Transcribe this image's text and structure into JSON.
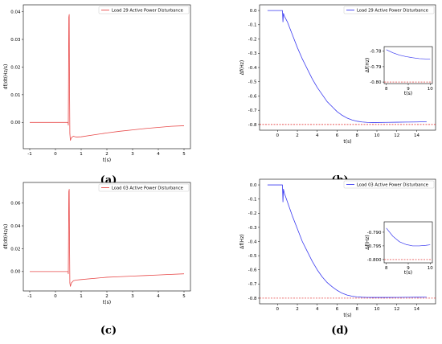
{
  "chart_data": [
    {
      "id": "a",
      "panel_label": "(a)",
      "type": "line",
      "legend": "Load 29 Active Power Disturbance",
      "legend_position": "top-right",
      "xlabel": "t(s)",
      "ylabel": "df/dt(Hz/s)",
      "xlim": [
        -1.25,
        5.25
      ],
      "ylim": [
        -0.0095,
        0.0425
      ],
      "xticks": [
        -1,
        0,
        1,
        2,
        3,
        4,
        5
      ],
      "yticks": [
        0.0,
        0.01,
        0.02,
        0.03,
        0.04
      ],
      "ytick_labels": [
        "0.00",
        "0.01",
        "0.02",
        "0.03",
        "0.04"
      ],
      "series": [
        {
          "name": "Load 29 Active Power Disturbance",
          "color": "#e84a4a",
          "x": [
            -1.0,
            0.0,
            0.49,
            0.5,
            0.52,
            0.535,
            0.545,
            0.56,
            0.58,
            0.62,
            0.7,
            0.8,
            1.0,
            1.5,
            2.0,
            2.5,
            3.0,
            3.5,
            4.0,
            4.5,
            5.0
          ],
          "y": [
            0.0,
            0.0,
            0.0,
            -0.001,
            0.038,
            0.039,
            0.015,
            -0.004,
            -0.0065,
            -0.0055,
            -0.005,
            -0.0053,
            -0.0052,
            -0.0045,
            -0.0038,
            -0.0032,
            -0.0027,
            -0.0022,
            -0.0018,
            -0.0014,
            -0.0012
          ]
        }
      ]
    },
    {
      "id": "b",
      "panel_label": "(b)",
      "type": "line",
      "legend": "Load 29 Active Power Disturbance",
      "legend_position": "top-right",
      "xlabel": "t(s)",
      "ylabel": "Δf(Hz)",
      "xlim": [
        -1.8,
        15.9
      ],
      "ylim": [
        -0.84,
        0.04
      ],
      "xticks": [
        0,
        2,
        4,
        6,
        8,
        10,
        12,
        14
      ],
      "yticks": [
        0.0,
        -0.1,
        -0.2,
        -0.3,
        -0.4,
        -0.5,
        -0.6,
        -0.7,
        -0.8
      ],
      "ytick_labels": [
        "0.0",
        "-0.1",
        "-0.2",
        "-0.3",
        "-0.4",
        "-0.5",
        "-0.6",
        "-0.7",
        "-0.8"
      ],
      "reference_line": -0.8,
      "series": [
        {
          "name": "Load 29 Active Power Disturbance",
          "color": "#3a3af0",
          "x": [
            -1.0,
            0.0,
            0.5,
            0.55,
            0.6,
            0.7,
            1.0,
            1.5,
            2.0,
            2.5,
            3.0,
            3.5,
            4.0,
            4.5,
            5.0,
            5.5,
            6.0,
            6.5,
            7.0,
            7.5,
            8.0,
            8.5,
            9.0,
            9.5,
            10.0,
            11.0,
            12.0,
            13.0,
            14.0,
            15.0
          ],
          "y": [
            0.0,
            0.0,
            0.0,
            -0.08,
            -0.02,
            -0.04,
            -0.08,
            -0.17,
            -0.26,
            -0.34,
            -0.41,
            -0.48,
            -0.54,
            -0.59,
            -0.64,
            -0.675,
            -0.71,
            -0.735,
            -0.755,
            -0.768,
            -0.777,
            -0.782,
            -0.785,
            -0.786,
            -0.786,
            -0.785,
            -0.784,
            -0.783,
            -0.782,
            -0.78
          ]
        }
      ],
      "inset": {
        "xlabel": "t(s)",
        "ylabel": "Δf(Hz)",
        "xlim": [
          7.9,
          10.1
        ],
        "ylim": [
          -0.801,
          -0.777
        ],
        "xticks": [
          8,
          9,
          10
        ],
        "yticks": [
          -0.78,
          -0.79,
          -0.8
        ],
        "ytick_labels": [
          "-0.78",
          "-0.79",
          "-0.80"
        ],
        "x": [
          8.0,
          8.3,
          8.6,
          8.9,
          9.2,
          9.5,
          9.8,
          10.0
        ],
        "y": [
          -0.779,
          -0.781,
          -0.7825,
          -0.7835,
          -0.7842,
          -0.7848,
          -0.785,
          -0.785
        ]
      }
    },
    {
      "id": "c",
      "panel_label": "(c)",
      "type": "line",
      "legend": "Load 03 Active Power Disturbance",
      "legend_position": "top-right",
      "xlabel": "t(s)",
      "ylabel": "df/dt(Hz/s)",
      "xlim": [
        -1.25,
        5.25
      ],
      "ylim": [
        -0.017,
        0.078
      ],
      "xticks": [
        -1,
        0,
        1,
        2,
        3,
        4,
        5
      ],
      "yticks": [
        0.0,
        0.02,
        0.04,
        0.06
      ],
      "ytick_labels": [
        "0.00",
        "0.02",
        "0.04",
        "0.06"
      ],
      "series": [
        {
          "name": "Load 03 Active Power Disturbance",
          "color": "#e84a4a",
          "x": [
            -1.0,
            0.0,
            0.49,
            0.5,
            0.52,
            0.535,
            0.545,
            0.56,
            0.58,
            0.62,
            0.7,
            0.8,
            1.0,
            1.5,
            2.0,
            2.5,
            3.0,
            3.5,
            4.0,
            4.5,
            5.0
          ],
          "y": [
            0.0,
            0.0,
            0.0,
            -0.002,
            0.07,
            0.072,
            0.03,
            -0.01,
            -0.013,
            -0.01,
            -0.008,
            -0.0075,
            -0.007,
            -0.006,
            -0.005,
            -0.0045,
            -0.004,
            -0.0035,
            -0.003,
            -0.0025,
            -0.002
          ]
        }
      ]
    },
    {
      "id": "d",
      "panel_label": "(d)",
      "type": "line",
      "legend": "Load 03 Active Power Disturbance",
      "legend_position": "top-right",
      "xlabel": "t(s)",
      "ylabel": "Δf(Hz)",
      "xlim": [
        -1.8,
        15.9
      ],
      "ylim": [
        -0.84,
        0.04
      ],
      "xticks": [
        0,
        2,
        4,
        6,
        8,
        10,
        12,
        14
      ],
      "yticks": [
        0.0,
        -0.1,
        -0.2,
        -0.3,
        -0.4,
        -0.5,
        -0.6,
        -0.7,
        -0.8
      ],
      "ytick_labels": [
        "0.0",
        "-0.1",
        "-0.2",
        "-0.3",
        "-0.4",
        "-0.5",
        "-0.6",
        "-0.7",
        "-0.8"
      ],
      "reference_line": -0.8,
      "series": [
        {
          "name": "Load 03 Active Power Disturbance",
          "color": "#3a3af0",
          "x": [
            -1.0,
            0.0,
            0.5,
            0.55,
            0.6,
            0.7,
            1.0,
            1.5,
            2.0,
            2.5,
            3.0,
            3.5,
            4.0,
            4.5,
            5.0,
            5.5,
            6.0,
            6.5,
            7.0,
            7.5,
            8.0,
            8.5,
            9.0,
            9.5,
            10.0,
            11.0,
            12.0,
            13.0,
            14.0,
            15.0
          ],
          "y": [
            0.0,
            0.0,
            0.0,
            -0.12,
            -0.03,
            -0.06,
            -0.12,
            -0.22,
            -0.31,
            -0.4,
            -0.47,
            -0.54,
            -0.6,
            -0.65,
            -0.69,
            -0.72,
            -0.745,
            -0.765,
            -0.778,
            -0.786,
            -0.791,
            -0.7935,
            -0.7945,
            -0.795,
            -0.795,
            -0.7948,
            -0.7945,
            -0.794,
            -0.7935,
            -0.793
          ]
        }
      ],
      "inset": {
        "xlabel": "t(s)",
        "ylabel": "Δf(Hz)",
        "xlim": [
          7.9,
          10.1
        ],
        "ylim": [
          -0.8012,
          -0.7862
        ],
        "xticks": [
          8,
          9,
          10
        ],
        "yticks": [
          -0.79,
          -0.795,
          -0.8
        ],
        "ytick_labels": [
          "-0.790",
          "-0.795",
          "-0.800"
        ],
        "x": [
          8.0,
          8.3,
          8.6,
          8.9,
          9.2,
          9.5,
          9.8,
          10.0
        ],
        "y": [
          -0.7885,
          -0.7915,
          -0.7935,
          -0.7945,
          -0.795,
          -0.795,
          -0.7948,
          -0.7946
        ]
      }
    }
  ]
}
